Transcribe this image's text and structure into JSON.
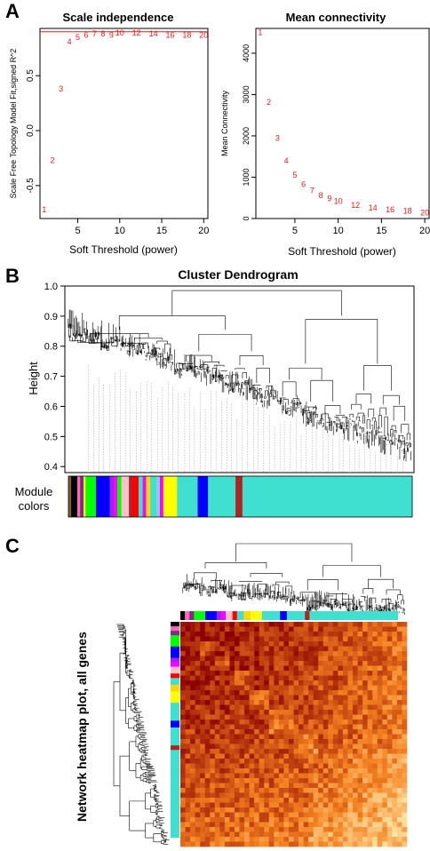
{
  "panels": {
    "A": "A",
    "B": "B",
    "C": "C"
  },
  "chart_data": [
    {
      "type": "scatter",
      "title": "Scale independence",
      "xlabel": "Soft Threshold (power)",
      "ylabel": "Scale Free Topology Model Fit,signed R^2",
      "xlim": [
        0.5,
        20.5
      ],
      "ylim": [
        -0.8,
        0.93
      ],
      "xticks": [
        "5",
        "10",
        "15",
        "20"
      ],
      "yticks": [
        "-0.5",
        "0.0",
        "0.5"
      ],
      "reference_line": 0.9,
      "marker_color": "#e41a1c",
      "line_color": "#e41a1c",
      "x": [
        1,
        2,
        3,
        4,
        5,
        6,
        7,
        8,
        9,
        10,
        12,
        14,
        16,
        18,
        20
      ],
      "y": [
        -0.72,
        -0.27,
        0.38,
        0.81,
        0.85,
        0.87,
        0.88,
        0.88,
        0.87,
        0.89,
        0.89,
        0.88,
        0.87,
        0.87,
        0.87
      ],
      "point_labels": [
        "1",
        "2",
        "3",
        "4",
        "5",
        "6",
        "7",
        "8",
        "9",
        "10",
        "12",
        "14",
        "16",
        "18",
        "20"
      ]
    },
    {
      "type": "scatter",
      "title": "Mean connectivity",
      "xlabel": "Soft Threshold (power)",
      "ylabel": "Mean Connectivity",
      "xlim": [
        0.5,
        20.5
      ],
      "ylim": [
        0,
        4600
      ],
      "xticks": [
        "5",
        "10",
        "15",
        "20"
      ],
      "yticks": [
        "0",
        "1000",
        "2000",
        "3000",
        "4000"
      ],
      "marker_color": "#e41a1c",
      "x": [
        1,
        2,
        3,
        4,
        5,
        6,
        7,
        8,
        9,
        10,
        12,
        14,
        16,
        18,
        20
      ],
      "y": [
        4500,
        2820,
        1950,
        1400,
        1050,
        830,
        680,
        560,
        480,
        420,
        320,
        260,
        210,
        180,
        140
      ],
      "point_labels": [
        "1",
        "2",
        "3",
        "4",
        "5",
        "6",
        "7",
        "8",
        "9",
        "10",
        "12",
        "14",
        "16",
        "18",
        "20"
      ]
    },
    {
      "type": "dendrogram",
      "title": "Cluster Dendrogram",
      "ylabel": "Height",
      "ylim": [
        0.38,
        1.0
      ],
      "yticks": [
        "0.4",
        "0.5",
        "0.6",
        "0.7",
        "0.8",
        "0.9",
        "1.0"
      ],
      "color_bar_label": "Module colors",
      "module_colors": [
        {
          "color": "#8b5a3c",
          "fraction": 0.008
        },
        {
          "color": "#000000",
          "fraction": 0.018
        },
        {
          "color": "#ff69b4",
          "fraction": 0.008
        },
        {
          "color": "#7b2d8e",
          "fraction": 0.01
        },
        {
          "color": "#ffff00",
          "fraction": 0.006
        },
        {
          "color": "#00ff00",
          "fraction": 0.03
        },
        {
          "color": "#0000ff",
          "fraction": 0.04
        },
        {
          "color": "#a020f0",
          "fraction": 0.012
        },
        {
          "color": "#ff00ff",
          "fraction": 0.01
        },
        {
          "color": "#00ff00",
          "fraction": 0.012
        },
        {
          "color": "#ffc0cb",
          "fraction": 0.022
        },
        {
          "color": "#a52a2a",
          "fraction": 0.008
        },
        {
          "color": "#ff0000",
          "fraction": 0.02
        },
        {
          "color": "#40e0d0",
          "fraction": 0.012
        },
        {
          "color": "#ff00ff",
          "fraction": 0.01
        },
        {
          "color": "#ffd700",
          "fraction": 0.012
        },
        {
          "color": "#40e0d0",
          "fraction": 0.018
        },
        {
          "color": "#87ceeb",
          "fraction": 0.01
        },
        {
          "color": "#ff00ff",
          "fraction": 0.01
        },
        {
          "color": "#ffff00",
          "fraction": 0.04
        },
        {
          "color": "#40e0d0",
          "fraction": 0.06
        },
        {
          "color": "#0000ff",
          "fraction": 0.03
        },
        {
          "color": "#40e0d0",
          "fraction": 0.08
        },
        {
          "color": "#b22222",
          "fraction": 0.02
        },
        {
          "color": "#40e0d0",
          "fraction": 0.494
        }
      ]
    },
    {
      "type": "heatmap",
      "title": "Network heatmap plot, all genes",
      "low_color": "#ffffc8",
      "mid_color": "#f58220",
      "high_color": "#8b0000",
      "module_colors": [
        {
          "color": "#000000",
          "fraction": 0.02
        },
        {
          "color": "#ff69b4",
          "fraction": 0.02
        },
        {
          "color": "#7b2d8e",
          "fraction": 0.02
        },
        {
          "color": "#00ff00",
          "fraction": 0.05
        },
        {
          "color": "#0000ff",
          "fraction": 0.05
        },
        {
          "color": "#a020f0",
          "fraction": 0.02
        },
        {
          "color": "#ff00ff",
          "fraction": 0.02
        },
        {
          "color": "#ffc0cb",
          "fraction": 0.03
        },
        {
          "color": "#ff0000",
          "fraction": 0.02
        },
        {
          "color": "#40e0d0",
          "fraction": 0.03
        },
        {
          "color": "#ffd700",
          "fraction": 0.03
        },
        {
          "color": "#ffff00",
          "fraction": 0.05
        },
        {
          "color": "#40e0d0",
          "fraction": 0.08
        },
        {
          "color": "#0000ff",
          "fraction": 0.03
        },
        {
          "color": "#40e0d0",
          "fraction": 0.08
        },
        {
          "color": "#b22222",
          "fraction": 0.02
        },
        {
          "color": "#40e0d0",
          "fraction": 0.39
        }
      ]
    }
  ]
}
